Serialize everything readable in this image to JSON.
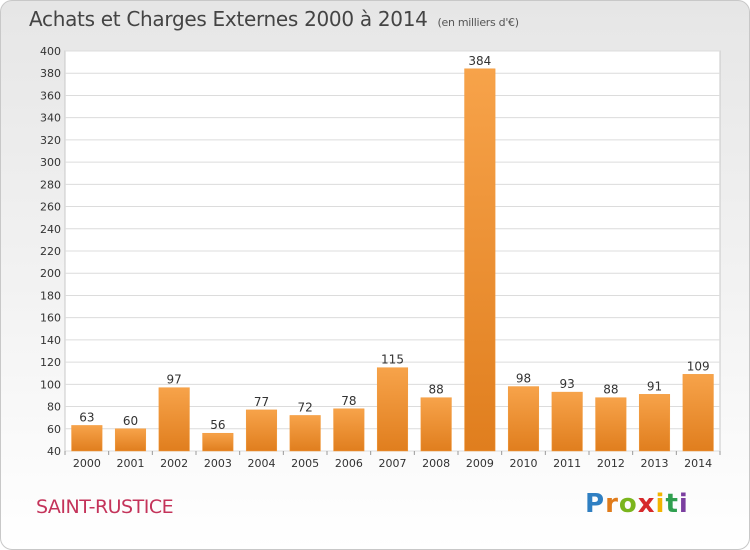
{
  "chart_data": {
    "type": "bar",
    "title": "Achats et Charges Externes 2000 à 2014",
    "unit_note": "(en milliers d'€)",
    "categories": [
      "2000",
      "2001",
      "2002",
      "2003",
      "2004",
      "2005",
      "2006",
      "2007",
      "2008",
      "2009",
      "2010",
      "2011",
      "2012",
      "2013",
      "2014"
    ],
    "values": [
      63,
      60,
      97,
      56,
      77,
      72,
      78,
      115,
      88,
      384,
      98,
      93,
      88,
      91,
      109
    ],
    "yticks": [
      40,
      60,
      80,
      100,
      120,
      140,
      160,
      180,
      200,
      220,
      240,
      260,
      280,
      300,
      320,
      340,
      360,
      380,
      400
    ],
    "ylim": [
      40,
      400
    ],
    "xlabel": "",
    "ylabel": "",
    "grid": true,
    "bar_color": "#f29b3e"
  },
  "commune": "SAINT-RUSTICE",
  "logo": {
    "letters": [
      "P",
      "r",
      "o",
      "x",
      "i",
      "t",
      "i"
    ],
    "colors": [
      "#2f7fc2",
      "#e07b1a",
      "#7ab51d",
      "#d6292b",
      "#f2b400",
      "#2f9f4f",
      "#7b3fa0"
    ]
  }
}
